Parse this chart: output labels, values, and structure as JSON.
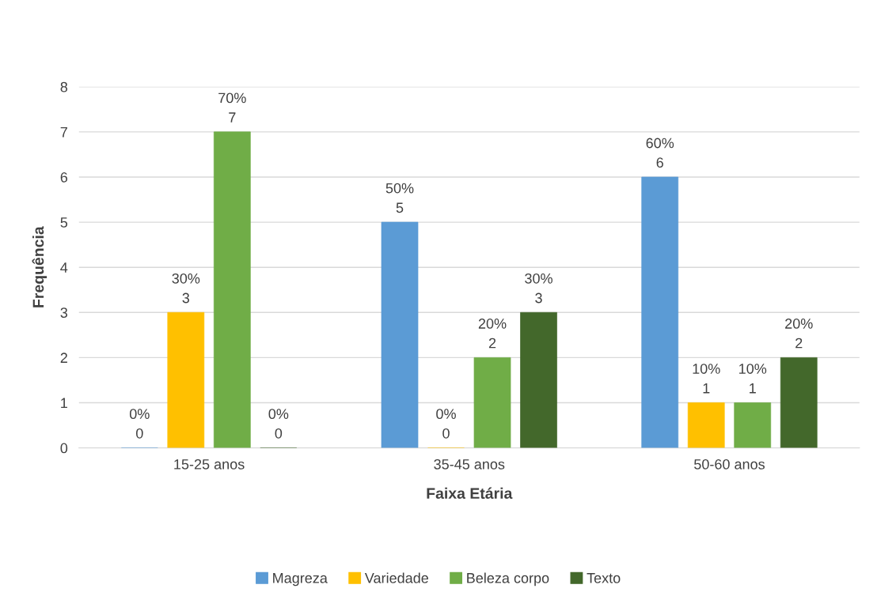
{
  "chart_data": {
    "type": "bar",
    "xlabel": "Faixa Etária",
    "ylabel": "Frequência",
    "categories": [
      "15-25 anos",
      "35-45 anos",
      "50-60 anos"
    ],
    "series": [
      {
        "name": "Magreza",
        "color": "#5b9bd5",
        "values": [
          0,
          5,
          6
        ],
        "value_labels": [
          "0%\n0",
          "50%\n5",
          "60%\n6"
        ]
      },
      {
        "name": "Variedade",
        "color": "#ffc000",
        "values": [
          3,
          0,
          1
        ],
        "value_labels": [
          "30%\n3",
          "0%\n0",
          "10%\n1"
        ]
      },
      {
        "name": "Beleza corpo",
        "color": "#70ad47",
        "values": [
          7,
          2,
          1
        ],
        "value_labels": [
          "70%\n7",
          "20%\n2",
          "10%\n1"
        ]
      },
      {
        "name": "Texto",
        "color": "#43682b",
        "values": [
          0,
          3,
          2
        ],
        "value_labels": [
          "0%\n0",
          "30%\n3",
          "20%\n2"
        ]
      }
    ],
    "ylim": [
      0,
      8
    ],
    "yticks": [
      0,
      1,
      2,
      3,
      4,
      5,
      6,
      7,
      8
    ],
    "grid": "y",
    "legend": "bottom"
  }
}
